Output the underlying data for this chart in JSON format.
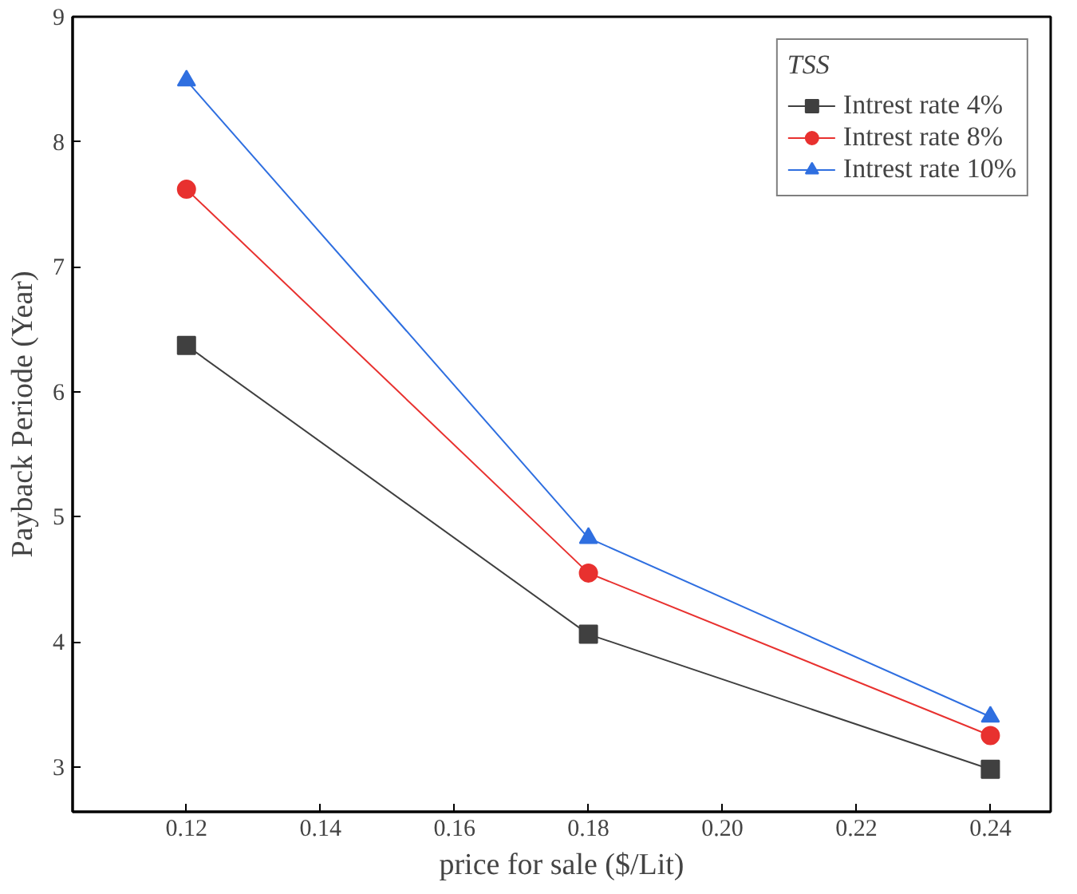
{
  "chart_data": {
    "type": "line",
    "xlabel": "price for sale ($/Lit)",
    "ylabel": "Payback Periode (Year)",
    "legend_title": "TSS",
    "x": [
      0.12,
      0.18,
      0.24
    ],
    "series": [
      {
        "name": "Intrest rate 4%",
        "color": "#404040",
        "marker": "square",
        "values": [
          6.37,
          4.06,
          2.98
        ]
      },
      {
        "name": "Intrest rate 8%",
        "color": "#e8312f",
        "marker": "circle",
        "values": [
          7.62,
          4.55,
          3.25
        ]
      },
      {
        "name": "Intrest rate 10%",
        "color": "#2f6fe0",
        "marker": "triangle",
        "values": [
          8.49,
          4.83,
          3.4
        ]
      }
    ],
    "xlim": [
      0.103,
      0.249
    ],
    "ylim": [
      2.64,
      9
    ],
    "xticks": [
      {
        "value": 0.12,
        "label": "0.12"
      },
      {
        "value": 0.14,
        "label": "0.14"
      },
      {
        "value": 0.16,
        "label": "0.16"
      },
      {
        "value": 0.18,
        "label": "0.18"
      },
      {
        "value": 0.2,
        "label": "0.20"
      },
      {
        "value": 0.22,
        "label": "0.22"
      },
      {
        "value": 0.24,
        "label": "0.24"
      }
    ],
    "yticks": [
      3,
      4,
      5,
      6,
      7,
      8,
      9
    ],
    "grid": false,
    "legend": "top right",
    "line_style": "solid"
  }
}
